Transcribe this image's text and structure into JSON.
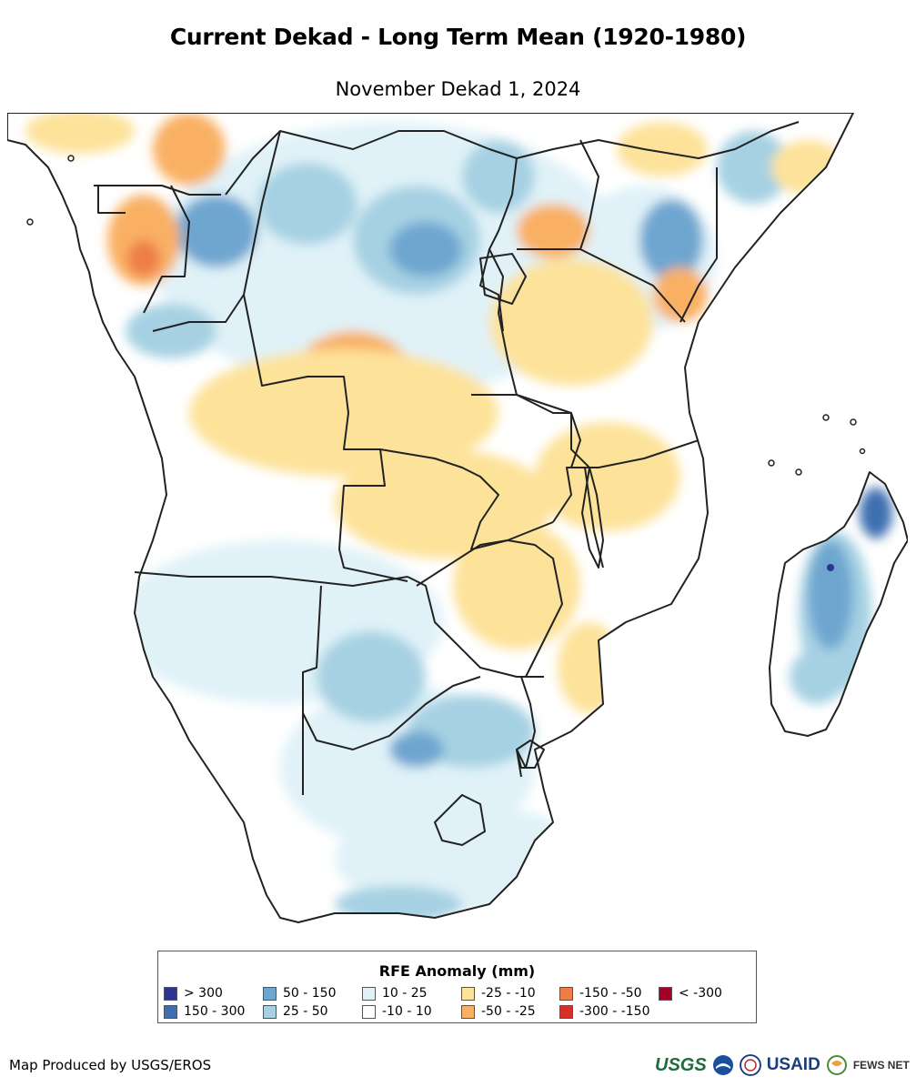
{
  "header": {
    "title": "Current Dekad - Long Term Mean (1920-1980)",
    "subtitle": "November Dekad 1, 2024"
  },
  "map": {
    "region": "Southern and Central Africa with Madagascar",
    "land_color": "#ffffff",
    "border_color": "#222222",
    "anomaly_colors": {
      "blue_light": "#e0f2f8",
      "blue_mid": "#a6d1e3",
      "blue_dark": "#6ea6d0",
      "blue_deep": "#3e6fb0",
      "orange_light": "#fde29a",
      "orange_mid": "#f9b064",
      "orange_dark": "#ee7e46"
    }
  },
  "legend": {
    "title": "RFE Anomaly (mm)",
    "items": [
      {
        "label": "> 300",
        "color": "#2c3593"
      },
      {
        "label": "150 - 300",
        "color": "#3e6fb0"
      },
      {
        "label": "50 - 150",
        "color": "#6ea6d0"
      },
      {
        "label": "25 - 50",
        "color": "#a6d1e3"
      },
      {
        "label": "10 - 25",
        "color": "#e0f2f8"
      },
      {
        "label": "-10 - 10",
        "color": "#ffffff"
      },
      {
        "label": "-25 - -10",
        "color": "#fde29a"
      },
      {
        "label": "-50 - -25",
        "color": "#f9b064"
      },
      {
        "label": "-150 - -50",
        "color": "#ee7e46"
      },
      {
        "label": "-300 - -150",
        "color": "#d73027"
      },
      {
        "label": "< -300",
        "color": "#a50026"
      }
    ]
  },
  "footer": {
    "credit": "Map Produced by USGS/EROS",
    "logos": {
      "usgs": "USGS",
      "usaid": "USAID",
      "fews": "FEWS NET"
    }
  }
}
